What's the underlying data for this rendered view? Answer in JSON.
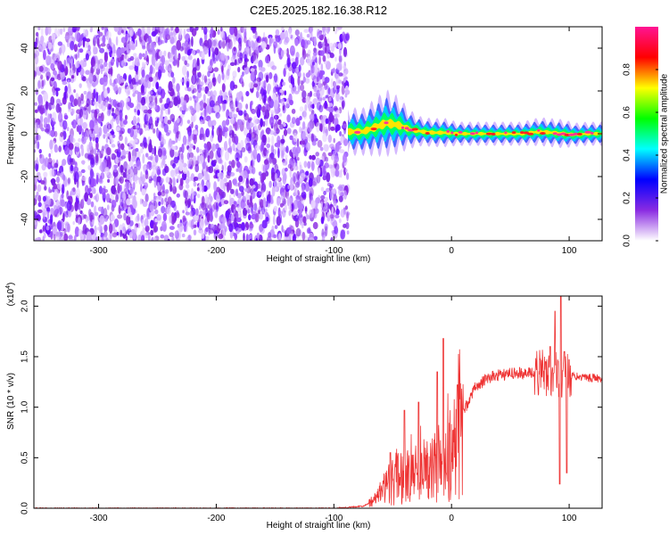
{
  "title": "C2E5.2025.182.16.38.R12",
  "chart_data": [
    {
      "type": "heatmap",
      "xlabel": "Height of straight line (km)",
      "ylabel": "Frequency (Hz)",
      "xlim": [
        -355,
        128
      ],
      "ylim": [
        -50,
        50
      ],
      "xticks": [
        -300,
        -200,
        -100,
        0,
        100
      ],
      "yticks": [
        -40,
        -20,
        0,
        20,
        40
      ],
      "noise_region_x": [
        -355,
        -88
      ],
      "signal_band": {
        "x": [
          -88,
          -75,
          -65,
          -55,
          -45,
          -35,
          -25,
          -15,
          -5,
          5,
          20,
          40,
          60,
          75,
          85,
          95,
          105,
          115,
          128
        ],
        "center_freq": [
          1,
          1,
          3,
          5,
          4,
          2,
          1,
          0.5,
          0.5,
          0,
          0,
          0,
          0,
          1,
          0.5,
          0,
          -0.5,
          0,
          0
        ],
        "halfwidth": [
          5,
          5,
          6,
          7,
          6,
          4,
          3,
          3,
          3,
          2.5,
          2.5,
          2.5,
          2.5,
          3,
          3,
          3,
          2.5,
          2.5,
          2.5
        ]
      },
      "colorbar": {
        "label": "Normalized spectral amplitude",
        "range": [
          0.0,
          1.0
        ],
        "ticks": [
          "0.0",
          "0.2",
          "0.4",
          "0.6",
          "0.8"
        ],
        "tick_values": [
          0.0,
          0.2,
          0.4,
          0.6,
          0.8
        ],
        "colors": [
          "#ffffff",
          "#8a2be2",
          "#0000ff",
          "#00ffff",
          "#00ff00",
          "#ffff00",
          "#ff0000",
          "#ff1493"
        ]
      }
    },
    {
      "type": "line",
      "xlabel": "Height of straight line (km)",
      "ylabel": "SNR (10 * v/v)",
      "yscale_note": "(x10",
      "yscale_exp": "4",
      "xlim": [
        -355,
        128
      ],
      "ylim": [
        0,
        2.1
      ],
      "xticks": [
        -300,
        -200,
        -100,
        0,
        100
      ],
      "yticks": [
        "0.0",
        "0.5",
        "1.0",
        "1.5",
        "2.0"
      ],
      "ytick_values": [
        0.0,
        0.5,
        1.0,
        1.5,
        2.0
      ],
      "color": "#ee3333",
      "envelope": {
        "x": [
          -355,
          -100,
          -75,
          -65,
          -55,
          -45,
          -35,
          -25,
          -15,
          -5,
          0,
          10,
          20,
          30,
          40,
          60,
          80,
          90,
          100,
          128
        ],
        "y": [
          0.0,
          0.0,
          0.02,
          0.08,
          0.22,
          0.3,
          0.32,
          0.36,
          0.42,
          0.5,
          0.62,
          0.95,
          1.2,
          1.28,
          1.32,
          1.34,
          1.33,
          1.32,
          1.31,
          1.28
        ]
      },
      "spikes": {
        "x": [
          -52,
          -40,
          -28,
          -12,
          -7,
          5,
          80,
          84,
          88,
          93,
          96,
          100
        ],
        "y": [
          0.55,
          0.97,
          1.05,
          1.35,
          1.68,
          1.22,
          1.45,
          1.6,
          1.95,
          2.12,
          1.55,
          1.47
        ]
      },
      "dips": {
        "x": [
          92,
          98
        ],
        "y": [
          0.24,
          0.35
        ]
      }
    }
  ]
}
